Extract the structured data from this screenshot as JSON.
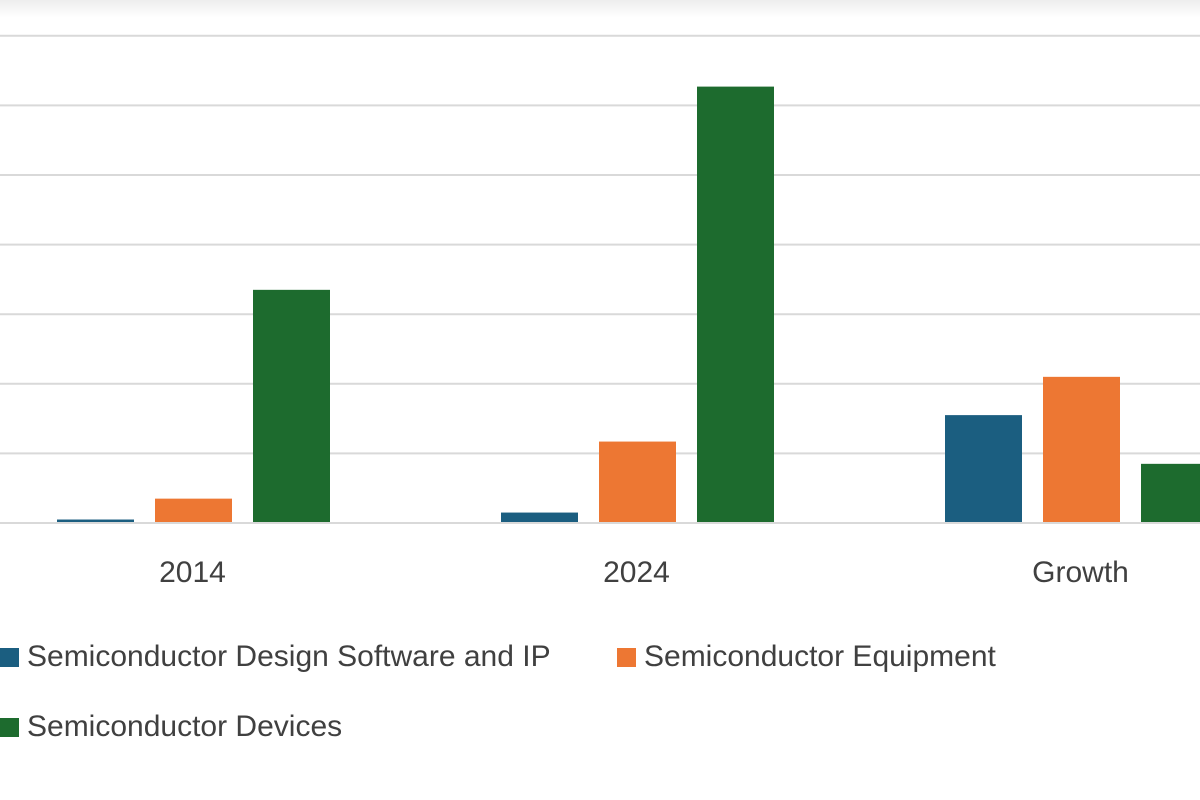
{
  "chart_data": {
    "type": "bar",
    "categories": [
      "2014",
      "2024",
      "Growth"
    ],
    "series": [
      {
        "name": "Semiconductor Design Software and IP",
        "color": "#1b5e80",
        "values": [
          0.05,
          0.15,
          1.55
        ]
      },
      {
        "name": "Semiconductor Equipment",
        "color": "#ed7733",
        "values": [
          0.35,
          1.17,
          2.1
        ]
      },
      {
        "name": "Semiconductor Devices",
        "color": "#1d6b2e",
        "values": [
          3.35,
          6.27,
          0.85
        ]
      }
    ],
    "ylim": [
      0,
      7
    ],
    "grid": true,
    "legend_position": "bottom"
  }
}
